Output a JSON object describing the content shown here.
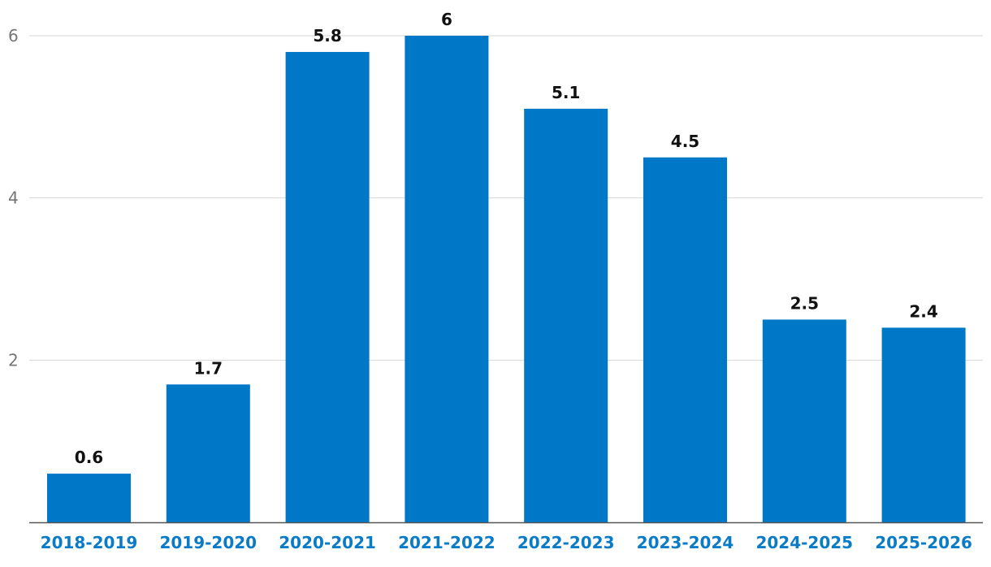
{
  "chart_data": {
    "type": "bar",
    "title": "",
    "xlabel": "",
    "ylabel": "",
    "categories": [
      "2018-2019",
      "2019-2020",
      "2020-2021",
      "2021-2022",
      "2022-2023",
      "2023-2024",
      "2024-2025",
      "2025-2026"
    ],
    "values": [
      0.6,
      1.7,
      5.8,
      6,
      5.1,
      4.5,
      2.5,
      2.4
    ],
    "data_labels": [
      "0.6",
      "1.7",
      "5.8",
      "6",
      "5.1",
      "4.5",
      "2.5",
      "2.4"
    ],
    "yticks": [
      2,
      4,
      6
    ],
    "ytick_labels": [
      "2",
      "4",
      "6"
    ],
    "ylim": [
      0,
      6
    ],
    "grid": true,
    "legend": "none",
    "colors": {
      "bar": "#0078c8",
      "category_text": "#0a7bc7",
      "tick_text": "#757575",
      "grid": "#d6d6d6",
      "axis": "#555555",
      "data_label_text": "#111111"
    }
  }
}
